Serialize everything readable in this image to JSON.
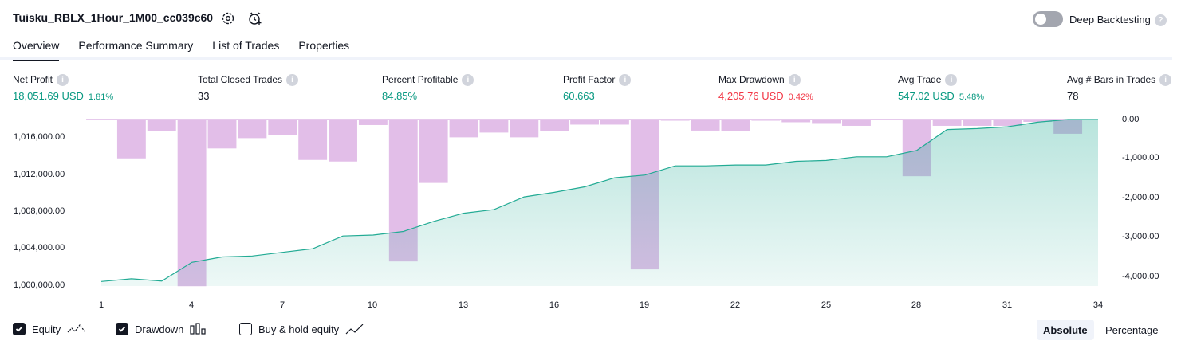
{
  "header": {
    "title": "Tuisku_RBLX_1Hour_1M00_cc039c60",
    "deep_backtesting_label": "Deep Backtesting"
  },
  "tabs": [
    {
      "label": "Overview",
      "active": true
    },
    {
      "label": "Performance Summary",
      "active": false
    },
    {
      "label": "List of Trades",
      "active": false
    },
    {
      "label": "Properties",
      "active": false
    }
  ],
  "metrics": {
    "net_profit": {
      "label": "Net Profit",
      "value": "18,051.69 USD",
      "pct": "1.81%"
    },
    "total_closed_trades": {
      "label": "Total Closed Trades",
      "value": "33"
    },
    "percent_profitable": {
      "label": "Percent Profitable",
      "value": "84.85%"
    },
    "profit_factor": {
      "label": "Profit Factor",
      "value": "60.663"
    },
    "max_drawdown": {
      "label": "Max Drawdown",
      "value": "4,205.76 USD",
      "pct": "0.42%"
    },
    "avg_trade": {
      "label": "Avg Trade",
      "value": "547.02 USD",
      "pct": "5.48%"
    },
    "avg_bars": {
      "label": "Avg # Bars in Trades",
      "value": "78"
    }
  },
  "colors": {
    "profit": "#089981",
    "loss": "#f23645",
    "equity_line": "#22ab94",
    "drawdown_bar": "#ce93d8"
  },
  "chart_data": {
    "type": "area",
    "x": [
      1,
      2,
      3,
      4,
      5,
      6,
      7,
      8,
      9,
      10,
      11,
      12,
      13,
      14,
      15,
      16,
      17,
      18,
      19,
      20,
      21,
      22,
      23,
      24,
      25,
      26,
      27,
      28,
      29,
      30,
      31,
      32,
      33,
      34
    ],
    "xticks": [
      "1",
      "4",
      "7",
      "10",
      "13",
      "16",
      "19",
      "22",
      "25",
      "28",
      "31",
      "34"
    ],
    "yticks_left": [
      "1,016,000.00",
      "1,012,000.00",
      "1,008,000.00",
      "1,004,000.00",
      "1,000,000.00"
    ],
    "yticks_right": [
      "0.00",
      "-1,000.00",
      "-2,000.00",
      "-3,000.00",
      "-4,000.00"
    ],
    "ylim_left": [
      999500,
      1017800
    ],
    "ylim_right": [
      -4200,
      0
    ],
    "series": [
      {
        "name": "Equity",
        "type": "area",
        "axis": "left",
        "values": [
          1000000,
          1000300,
          1000050,
          1002100,
          1002700,
          1002800,
          1003200,
          1003600,
          1005000,
          1005100,
          1005500,
          1006600,
          1007500,
          1007900,
          1009300,
          1009800,
          1010400,
          1011400,
          1011700,
          1012700,
          1012700,
          1012800,
          1012800,
          1013200,
          1013300,
          1013700,
          1013700,
          1014400,
          1016700,
          1016800,
          1017000,
          1017500,
          1017800,
          1017800
        ]
      },
      {
        "name": "Drawdown",
        "type": "bar",
        "axis": "right",
        "values": [
          0,
          -980,
          -300,
          -4205,
          -730,
          -470,
          -400,
          -1020,
          -1060,
          -140,
          -3580,
          -1600,
          -450,
          -330,
          -450,
          -290,
          -130,
          -130,
          -3780,
          -30,
          -280,
          -290,
          -30,
          -70,
          -90,
          -160,
          0,
          -1430,
          -160,
          -160,
          -160,
          -60,
          -360,
          0
        ]
      }
    ]
  },
  "footer": {
    "checkboxes": [
      {
        "label": "Equity",
        "checked": true
      },
      {
        "label": "Drawdown",
        "checked": true
      },
      {
        "label": "Buy & hold equity",
        "checked": false
      }
    ],
    "modes": [
      {
        "label": "Absolute",
        "active": true
      },
      {
        "label": "Percentage",
        "active": false
      }
    ]
  }
}
